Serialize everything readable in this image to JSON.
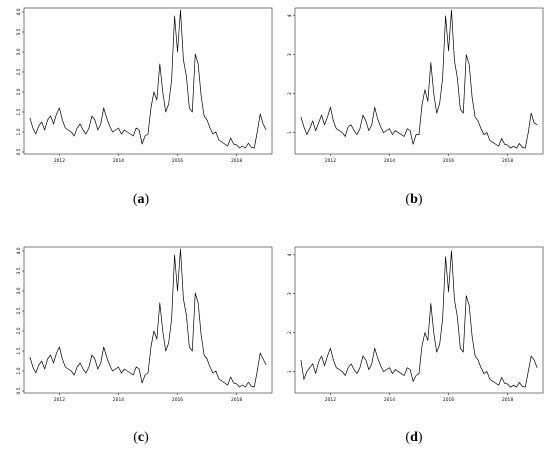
{
  "captions": {
    "a": {
      "open": "(",
      "letter": "a",
      "close": ")"
    },
    "b": {
      "open": "(",
      "letter": "b",
      "close": ")"
    },
    "c": {
      "open": "(",
      "letter": "c",
      "close": ")"
    },
    "d": {
      "open": "(",
      "letter": "d",
      "close": ")"
    }
  },
  "line_color": "#000000",
  "chart_data": [
    {
      "id": "a",
      "type": "line",
      "x_ticks": [
        2012,
        2014,
        2016,
        2018
      ],
      "x_tick_labels": [
        "2012",
        "2014",
        "2016",
        "2018"
      ],
      "y_ticks": [
        0.5,
        1.0,
        1.5,
        2.0,
        2.5,
        3.0,
        3.5,
        4.0
      ],
      "y_tick_labels": [
        "0.5",
        "1.0",
        "1.5",
        "2.0",
        "2.5",
        "3.0",
        "3.5",
        "4.0"
      ],
      "xlim": [
        2010.8,
        2019.2
      ],
      "ylim": [
        0.45,
        4.1
      ],
      "grid": false,
      "series": [
        {
          "x": [
            2011.0,
            2011.1,
            2011.2,
            2011.3,
            2011.4,
            2011.5,
            2011.6,
            2011.7,
            2011.8,
            2011.9,
            2012.0,
            2012.1,
            2012.2,
            2012.3,
            2012.4,
            2012.5,
            2012.6,
            2012.7,
            2012.8,
            2012.9,
            2013.0,
            2013.1,
            2013.2,
            2013.3,
            2013.4,
            2013.5,
            2013.6,
            2013.7,
            2013.8,
            2013.9,
            2014.0,
            2014.1,
            2014.2,
            2014.3,
            2014.4,
            2014.5,
            2014.6,
            2014.7,
            2014.8,
            2014.9,
            2015.0,
            2015.1,
            2015.2,
            2015.3,
            2015.4,
            2015.5,
            2015.6,
            2015.7,
            2015.8,
            2015.9,
            2016.0,
            2016.1,
            2016.2,
            2016.3,
            2016.4,
            2016.5,
            2016.6,
            2016.7,
            2016.8,
            2016.9,
            2017.0,
            2017.1,
            2017.2,
            2017.3,
            2017.4,
            2017.5,
            2017.6,
            2017.7,
            2017.8,
            2017.9,
            2018.0,
            2018.1,
            2018.2,
            2018.3,
            2018.4,
            2018.5,
            2018.6,
            2018.7,
            2018.8,
            2018.9,
            2019.0
          ],
          "values": [
            1.35,
            1.1,
            0.95,
            1.15,
            1.25,
            1.05,
            1.3,
            1.4,
            1.2,
            1.45,
            1.6,
            1.3,
            1.1,
            1.05,
            1.0,
            0.9,
            1.1,
            1.2,
            1.05,
            0.95,
            1.1,
            1.4,
            1.3,
            1.05,
            1.2,
            1.6,
            1.35,
            1.15,
            1.0,
            1.05,
            1.1,
            0.95,
            1.05,
            1.0,
            0.95,
            0.9,
            1.1,
            1.05,
            0.7,
            0.9,
            0.95,
            1.6,
            2.0,
            1.8,
            2.7,
            2.0,
            1.5,
            1.7,
            2.3,
            3.9,
            3.0,
            4.05,
            2.8,
            2.4,
            1.6,
            1.5,
            2.95,
            2.7,
            1.9,
            1.4,
            1.3,
            1.1,
            0.95,
            1.0,
            0.8,
            0.75,
            0.7,
            0.65,
            0.85,
            0.7,
            0.68,
            0.6,
            0.65,
            0.6,
            0.72,
            0.62,
            0.6,
            1.0,
            1.45,
            1.2,
            1.05
          ]
        }
      ]
    },
    {
      "id": "b",
      "type": "line",
      "x_ticks": [
        2012,
        2014,
        2016,
        2018
      ],
      "x_tick_labels": [
        "2012",
        "2014",
        "2016",
        "2018"
      ],
      "y_ticks": [
        1,
        2,
        3,
        4
      ],
      "y_tick_labels": [
        "1",
        "2",
        "3",
        "4"
      ],
      "xlim": [
        2010.8,
        2019.2
      ],
      "ylim": [
        0.45,
        4.2
      ],
      "grid": false,
      "series": [
        {
          "x": [
            2011.0,
            2011.1,
            2011.2,
            2011.3,
            2011.4,
            2011.5,
            2011.6,
            2011.7,
            2011.8,
            2011.9,
            2012.0,
            2012.1,
            2012.2,
            2012.3,
            2012.4,
            2012.5,
            2012.6,
            2012.7,
            2012.8,
            2012.9,
            2013.0,
            2013.1,
            2013.2,
            2013.3,
            2013.4,
            2013.5,
            2013.6,
            2013.7,
            2013.8,
            2013.9,
            2014.0,
            2014.1,
            2014.2,
            2014.3,
            2014.4,
            2014.5,
            2014.6,
            2014.7,
            2014.8,
            2014.9,
            2015.0,
            2015.1,
            2015.2,
            2015.3,
            2015.4,
            2015.5,
            2015.6,
            2015.7,
            2015.8,
            2015.9,
            2016.0,
            2016.1,
            2016.2,
            2016.3,
            2016.4,
            2016.5,
            2016.6,
            2016.7,
            2016.8,
            2016.9,
            2017.0,
            2017.1,
            2017.2,
            2017.3,
            2017.4,
            2017.5,
            2017.6,
            2017.7,
            2017.8,
            2017.9,
            2018.0,
            2018.1,
            2018.2,
            2018.3,
            2018.4,
            2018.5,
            2018.6,
            2018.7,
            2018.8,
            2018.9,
            2019.0
          ],
          "values": [
            1.4,
            1.15,
            0.95,
            1.1,
            1.3,
            1.05,
            1.25,
            1.45,
            1.2,
            1.4,
            1.65,
            1.3,
            1.1,
            1.05,
            1.0,
            0.9,
            1.15,
            1.2,
            1.05,
            0.95,
            1.1,
            1.45,
            1.3,
            1.05,
            1.2,
            1.65,
            1.35,
            1.15,
            1.0,
            1.05,
            1.1,
            0.95,
            1.05,
            1.0,
            0.95,
            0.9,
            1.1,
            1.05,
            0.7,
            0.95,
            0.95,
            1.7,
            2.1,
            1.8,
            2.8,
            2.0,
            1.5,
            1.75,
            2.4,
            4.0,
            3.1,
            4.15,
            2.85,
            2.4,
            1.6,
            1.5,
            3.0,
            2.75,
            1.9,
            1.4,
            1.3,
            1.1,
            0.95,
            1.0,
            0.8,
            0.75,
            0.7,
            0.65,
            0.85,
            0.7,
            0.68,
            0.6,
            0.65,
            0.6,
            0.72,
            0.62,
            0.6,
            1.0,
            1.5,
            1.25,
            1.2
          ]
        }
      ]
    },
    {
      "id": "c",
      "type": "line",
      "x_ticks": [
        2012,
        2014,
        2016,
        2018
      ],
      "x_tick_labels": [
        "2012",
        "2014",
        "2016",
        "2018"
      ],
      "y_ticks": [
        0.5,
        1.0,
        1.5,
        2.0,
        2.5,
        3.0,
        3.5,
        4.0
      ],
      "y_tick_labels": [
        "0.5",
        "1.0",
        "1.5",
        "2.0",
        "2.5",
        "3.0",
        "3.5",
        "4.0"
      ],
      "xlim": [
        2010.8,
        2019.2
      ],
      "ylim": [
        0.45,
        4.1
      ],
      "grid": false,
      "series": [
        {
          "x": [
            2011.0,
            2011.1,
            2011.2,
            2011.3,
            2011.4,
            2011.5,
            2011.6,
            2011.7,
            2011.8,
            2011.9,
            2012.0,
            2012.1,
            2012.2,
            2012.3,
            2012.4,
            2012.5,
            2012.6,
            2012.7,
            2012.8,
            2012.9,
            2013.0,
            2013.1,
            2013.2,
            2013.3,
            2013.4,
            2013.5,
            2013.6,
            2013.7,
            2013.8,
            2013.9,
            2014.0,
            2014.1,
            2014.2,
            2014.3,
            2014.4,
            2014.5,
            2014.6,
            2014.7,
            2014.8,
            2014.9,
            2015.0,
            2015.1,
            2015.2,
            2015.3,
            2015.4,
            2015.5,
            2015.6,
            2015.7,
            2015.8,
            2015.9,
            2016.0,
            2016.1,
            2016.2,
            2016.3,
            2016.4,
            2016.5,
            2016.6,
            2016.7,
            2016.8,
            2016.9,
            2017.0,
            2017.1,
            2017.2,
            2017.3,
            2017.4,
            2017.5,
            2017.6,
            2017.7,
            2017.8,
            2017.9,
            2018.0,
            2018.1,
            2018.2,
            2018.3,
            2018.4,
            2018.5,
            2018.6,
            2018.7,
            2018.8,
            2018.9,
            2019.0
          ],
          "values": [
            1.35,
            1.1,
            0.95,
            1.15,
            1.25,
            1.05,
            1.3,
            1.4,
            1.2,
            1.45,
            1.6,
            1.3,
            1.1,
            1.05,
            1.0,
            0.9,
            1.1,
            1.2,
            1.05,
            0.95,
            1.1,
            1.4,
            1.3,
            1.05,
            1.2,
            1.6,
            1.35,
            1.15,
            1.0,
            1.05,
            1.1,
            0.95,
            1.05,
            1.0,
            0.95,
            0.9,
            1.1,
            1.05,
            0.7,
            0.9,
            0.95,
            1.6,
            2.0,
            1.8,
            2.7,
            2.0,
            1.5,
            1.7,
            2.3,
            3.9,
            3.0,
            4.05,
            2.8,
            2.4,
            1.6,
            1.5,
            2.95,
            2.7,
            1.9,
            1.4,
            1.3,
            1.1,
            0.95,
            1.0,
            0.8,
            0.75,
            0.7,
            0.65,
            0.85,
            0.7,
            0.68,
            0.6,
            0.65,
            0.6,
            0.72,
            0.62,
            0.6,
            1.0,
            1.45,
            1.3,
            1.15
          ]
        }
      ]
    },
    {
      "id": "d",
      "type": "line",
      "x_ticks": [
        2012,
        2014,
        2016,
        2018
      ],
      "x_tick_labels": [
        "2012",
        "2014",
        "2016",
        "2018"
      ],
      "y_ticks": [
        1,
        2,
        3,
        4
      ],
      "y_tick_labels": [
        "1",
        "2",
        "3",
        "4"
      ],
      "xlim": [
        2010.8,
        2019.2
      ],
      "ylim": [
        0.45,
        4.2
      ],
      "grid": false,
      "series": [
        {
          "x": [
            2011.0,
            2011.1,
            2011.2,
            2011.3,
            2011.4,
            2011.5,
            2011.6,
            2011.7,
            2011.8,
            2011.9,
            2012.0,
            2012.1,
            2012.2,
            2012.3,
            2012.4,
            2012.5,
            2012.6,
            2012.7,
            2012.8,
            2012.9,
            2013.0,
            2013.1,
            2013.2,
            2013.3,
            2013.4,
            2013.5,
            2013.6,
            2013.7,
            2013.8,
            2013.9,
            2014.0,
            2014.1,
            2014.2,
            2014.3,
            2014.4,
            2014.5,
            2014.6,
            2014.7,
            2014.8,
            2014.9,
            2015.0,
            2015.1,
            2015.2,
            2015.3,
            2015.4,
            2015.5,
            2015.6,
            2015.7,
            2015.8,
            2015.9,
            2016.0,
            2016.1,
            2016.2,
            2016.3,
            2016.4,
            2016.5,
            2016.6,
            2016.7,
            2016.8,
            2016.9,
            2017.0,
            2017.1,
            2017.2,
            2017.3,
            2017.4,
            2017.5,
            2017.6,
            2017.7,
            2017.8,
            2017.9,
            2018.0,
            2018.1,
            2018.2,
            2018.3,
            2018.4,
            2018.5,
            2018.6,
            2018.7,
            2018.8,
            2018.9,
            2019.0
          ],
          "values": [
            1.3,
            0.8,
            1.0,
            1.1,
            1.2,
            0.95,
            1.25,
            1.4,
            1.15,
            1.4,
            1.6,
            1.3,
            1.1,
            1.05,
            1.0,
            0.9,
            1.1,
            1.2,
            1.05,
            0.95,
            1.1,
            1.4,
            1.3,
            1.05,
            1.2,
            1.6,
            1.35,
            1.15,
            1.0,
            1.05,
            1.1,
            0.95,
            1.05,
            1.0,
            0.95,
            0.9,
            1.1,
            1.05,
            0.75,
            0.9,
            0.95,
            1.65,
            2.0,
            1.8,
            2.75,
            2.0,
            1.5,
            1.7,
            2.35,
            3.95,
            3.05,
            4.1,
            2.85,
            2.4,
            1.6,
            1.5,
            2.95,
            2.7,
            1.9,
            1.4,
            1.3,
            1.1,
            0.95,
            1.0,
            0.8,
            0.75,
            0.7,
            0.65,
            0.85,
            0.7,
            0.68,
            0.6,
            0.65,
            0.6,
            0.72,
            0.62,
            0.6,
            1.0,
            1.4,
            1.3,
            1.1
          ]
        }
      ]
    }
  ]
}
